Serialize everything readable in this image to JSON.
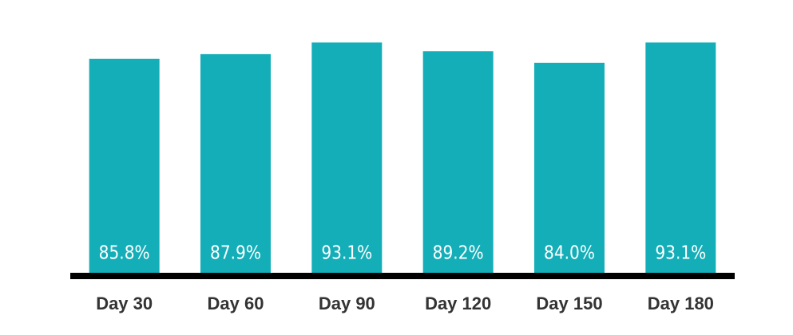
{
  "chart_data": {
    "type": "bar",
    "categories": [
      "Day 30",
      "Day 60",
      "Day 90",
      "Day 120",
      "Day 150",
      "Day 180"
    ],
    "values": [
      85.8,
      87.9,
      93.1,
      89.2,
      84.0,
      93.1
    ],
    "value_labels": [
      "85.8%",
      "87.9%",
      "93.1%",
      "89.2%",
      "84.0%",
      "93.1%"
    ],
    "color": "#13aeb8",
    "ylim": [
      -10,
      100
    ]
  }
}
